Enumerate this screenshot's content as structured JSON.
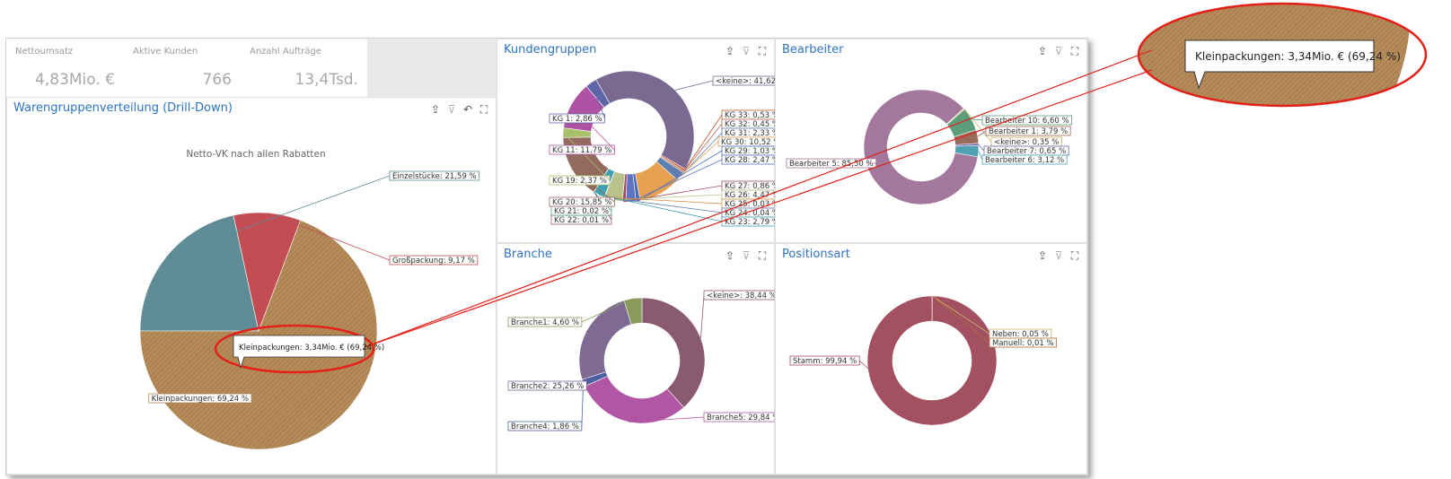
{
  "kpis": [
    {
      "label": "Nettoumsatz",
      "value": "4,83Mio. €"
    },
    {
      "label": "Aktive Kunden",
      "value": "766"
    },
    {
      "label": "Anzahl Aufträge",
      "value": "13,4Tsd."
    }
  ],
  "tooltip": "Kleinpackungen: 3,34Mio. € (69,24 %)",
  "colors": {
    "accent": "#2f74c0",
    "highlight": "#e32119"
  },
  "chart_data": [
    {
      "type": "pie",
      "title": "Warengruppenverteilung (Drill-Down)",
      "subtitle": "Netto-VK nach allen Rabatten",
      "labels": [
        "Einzelstücke: 21,59 %",
        "Großpackung: 9,17 %",
        "Kleinpackungen: 69,24 %"
      ],
      "values": [
        21.59,
        9.17,
        69.24
      ],
      "colors": [
        "#5f8c96",
        "#c24e53",
        "#b58b5a"
      ]
    },
    {
      "type": "pie",
      "title": "Kundengruppen",
      "labels": [
        "<keine>: 41,62 %",
        "KG 33: 0,53 %",
        "KG 32: 0,45 %",
        "KG 31: 2,33 %",
        "KG 30: 10,52 %",
        "KG 29: 1,03 %",
        "KG 28: 2,47 %",
        "KG 27: 0,86 %",
        "KG 26: 4,47 %",
        "KG 25: 0,03 %",
        "KG 24: 0,04 %",
        "KG 23: 2,79 %",
        "KG 22: 0,01 %",
        "KG 21: 0,02 %",
        "KG 20: 15,85 %",
        "KG 19: 2,37 %",
        "KG 11: 11,79 %",
        "KG 1: 2,86 %"
      ],
      "values": [
        41.62,
        0.53,
        0.45,
        2.33,
        10.52,
        1.03,
        2.47,
        0.86,
        4.47,
        0.03,
        0.04,
        2.79,
        0.01,
        0.02,
        15.85,
        2.37,
        11.79,
        2.86
      ],
      "colors": [
        "#7a6a92",
        "#c3572f",
        "#b36d5a",
        "#5e7fb0",
        "#e5a050",
        "#4a6ab8",
        "#6073c0",
        "#a14a63",
        "#b9c28a",
        "#d38a3a",
        "#5f7ab5",
        "#3fa0b3",
        "#a05080",
        "#4a9a8a",
        "#946a5e",
        "#a9c06a",
        "#ae52a5",
        "#5f66a8"
      ]
    },
    {
      "type": "pie",
      "title": "Bearbeiter",
      "labels": [
        "<keine>: 0,35 %",
        "Bearbeiter 10: 6,60 %",
        "Bearbeiter 1: 3,79 %",
        "Bearbeiter 7: 0,65 %",
        "Bearbeiter 6: 3,12 %",
        "Bearbeiter 5: 85,50 %"
      ],
      "values": [
        0.35,
        6.6,
        3.79,
        0.65,
        3.12,
        85.5
      ],
      "colors": [
        "#c8b46a",
        "#5c9e7c",
        "#9a6a5a",
        "#6a66b0",
        "#4fa0b0",
        "#a4779c"
      ]
    },
    {
      "type": "pie",
      "title": "Branche",
      "labels": [
        "<keine>: 38,44 %",
        "Branche5: 29,84 %",
        "Branche4: 1,86 %",
        "Branche2: 25,26 %",
        "Branche1: 4,60 %"
      ],
      "values": [
        38.44,
        29.84,
        1.86,
        25.26,
        4.6
      ],
      "colors": [
        "#8a5a70",
        "#b056a5",
        "#4a62a0",
        "#7e6a92",
        "#8a9a5a"
      ]
    },
    {
      "type": "pie",
      "title": "Positionsart",
      "labels": [
        "Neben: 0,05 %",
        "Manuell: 0,01 %",
        "Stamm: 99,94 %"
      ],
      "values": [
        0.05,
        0.01,
        99.94
      ],
      "colors": [
        "#c8b46a",
        "#b07040",
        "#a35060"
      ]
    }
  ]
}
